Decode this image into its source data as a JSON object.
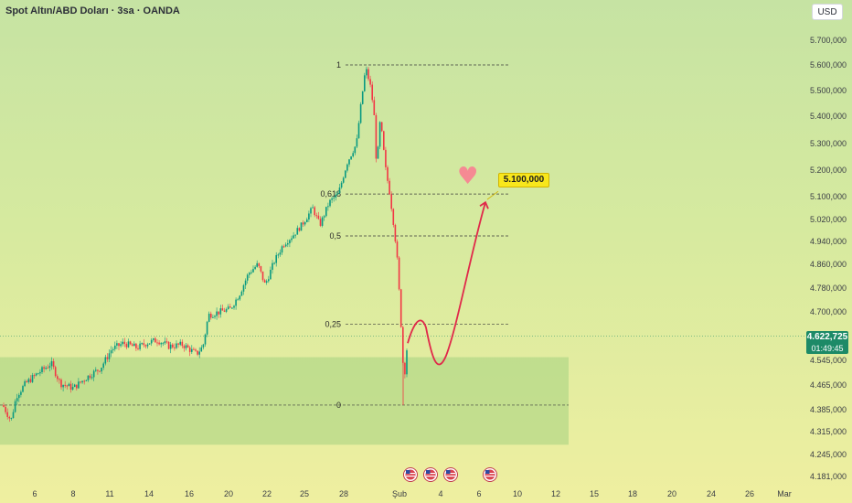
{
  "header": {
    "title": "Spot Altın/ABD Doları · 3sa · OANDA",
    "currency_button": "USD"
  },
  "price_tag": {
    "price": "4.622,725",
    "countdown": "01:49:45"
  },
  "target": {
    "label": "5.100,000",
    "icon": "heart-icon"
  },
  "colors": {
    "up": "#089981",
    "down": "#f23645",
    "projection": "#e0294a",
    "zone": "#a4d27f",
    "price_tag": "#1d8a67",
    "target_label": "#f8e71c"
  },
  "chart_data": {
    "type": "candlestick",
    "y_axis": {
      "ticks": [
        "5.700,000",
        "5.600,000",
        "5.500,000",
        "5.400,000",
        "5.300,000",
        "5.200,000",
        "5.100,000",
        "5.020,000",
        "4.940,000",
        "4.860,000",
        "4.780,000",
        "4.700,000",
        "4.545,000",
        "4.465,000",
        "4.385,000",
        "4.315,000",
        "4.245,000",
        "4.181,000"
      ],
      "tick_values": [
        5700,
        5600,
        5500,
        5400,
        5300,
        5200,
        5100,
        5020,
        4940,
        4860,
        4780,
        4700,
        4545,
        4465,
        4385,
        4315,
        4245,
        4181
      ],
      "range": [
        4170,
        5790
      ]
    },
    "x_axis": {
      "ticks": [
        "6",
        "8",
        "11",
        "14",
        "16",
        "20",
        "22",
        "25",
        "28",
        "Şub",
        "4",
        "6",
        "10",
        "12",
        "15",
        "18",
        "20",
        "24",
        "26",
        "Mar"
      ],
      "tick_positions": [
        38,
        80,
        120,
        163,
        207,
        250,
        292,
        333,
        376,
        437,
        482,
        524,
        566,
        608,
        650,
        692,
        735,
        778,
        820,
        858
      ]
    },
    "fibonacci": [
      {
        "label": "1",
        "value": 5600
      },
      {
        "label": "0,618",
        "value": 5110
      },
      {
        "label": "0,5",
        "value": 4960
      },
      {
        "label": "0,25",
        "value": 4660
      },
      {
        "label": "0",
        "value": 4400
      }
    ],
    "demand_zone": {
      "top": 4555,
      "bottom": 4275
    },
    "current_price": 4622.725,
    "target_price": 5100,
    "event_markers": 4
  }
}
